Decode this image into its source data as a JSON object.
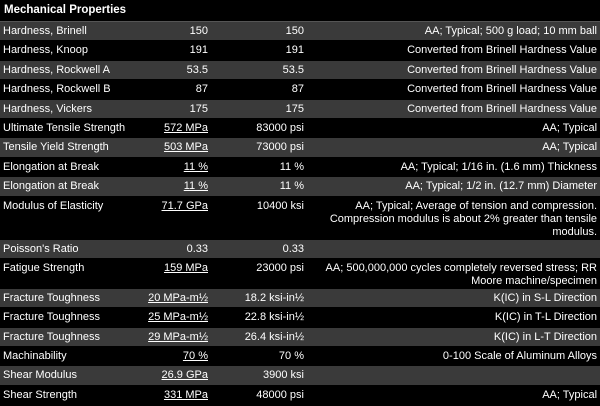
{
  "header": {
    "title": "Mechanical Properties"
  },
  "table": {
    "rows": [
      {
        "property": "Hardness, Brinell",
        "metric": "150",
        "english": "150",
        "comments": "AA; Typical; 500 g load; 10 mm ball",
        "link": false
      },
      {
        "property": "Hardness, Knoop",
        "metric": "191",
        "english": "191",
        "comments": "Converted from Brinell Hardness Value",
        "link": false
      },
      {
        "property": "Hardness, Rockwell A",
        "metric": "53.5",
        "english": "53.5",
        "comments": "Converted from Brinell Hardness Value",
        "link": false
      },
      {
        "property": "Hardness, Rockwell B",
        "metric": "87",
        "english": "87",
        "comments": "Converted from Brinell Hardness Value",
        "link": false
      },
      {
        "property": "Hardness, Vickers",
        "metric": "175",
        "english": "175",
        "comments": "Converted from Brinell Hardness Value",
        "link": false
      },
      {
        "property": "Ultimate Tensile Strength",
        "metric": "572 MPa",
        "english": "83000 psi",
        "comments": "AA; Typical",
        "link": true
      },
      {
        "property": "Tensile Yield Strength",
        "metric": "503 MPa",
        "english": "73000 psi",
        "comments": "AA; Typical",
        "link": true
      },
      {
        "property": "Elongation at Break",
        "metric": "11 %",
        "english": "11 %",
        "comments": "AA; Typical; 1/16 in. (1.6 mm) Thickness",
        "link": true
      },
      {
        "property": "Elongation at Break",
        "metric": "11 %",
        "english": "11 %",
        "comments": "AA; Typical; 1/2 in. (12.7 mm) Diameter",
        "link": true
      },
      {
        "property": "Modulus of Elasticity",
        "metric": "71.7 GPa",
        "english": "10400 ksi",
        "comments": "AA; Typical; Average of tension and compression. Compression modulus is about 2% greater than tensile modulus.",
        "link": true
      },
      {
        "property": "Poisson's Ratio",
        "metric": "0.33",
        "english": "0.33",
        "comments": "",
        "link": false
      },
      {
        "property": "Fatigue Strength",
        "metric": "159 MPa",
        "english": "23000 psi",
        "comments": "AA; 500,000,000 cycles completely reversed stress; RR Moore machine/specimen",
        "link": true
      },
      {
        "property": "Fracture Toughness",
        "metric": "20 MPa-m½",
        "english": "18.2 ksi-in½",
        "comments": "K(IC) in S-L Direction",
        "link": true
      },
      {
        "property": "Fracture Toughness",
        "metric": "25 MPa-m½",
        "english": "22.8 ksi-in½",
        "comments": "K(IC) in T-L Direction",
        "link": true
      },
      {
        "property": "Fracture Toughness",
        "metric": "29 MPa-m½",
        "english": "26.4 ksi-in½",
        "comments": "K(IC) in L-T Direction",
        "link": true
      },
      {
        "property": "Machinability",
        "metric": "70 %",
        "english": "70 %",
        "comments": "0-100 Scale of Aluminum Alloys",
        "link": true
      },
      {
        "property": "Shear Modulus",
        "metric": "26.9 GPa",
        "english": "3900 ksi",
        "comments": "",
        "link": true
      },
      {
        "property": "Shear Strength",
        "metric": "331 MPa",
        "english": "48000 psi",
        "comments": "AA; Typical",
        "link": true
      }
    ]
  }
}
